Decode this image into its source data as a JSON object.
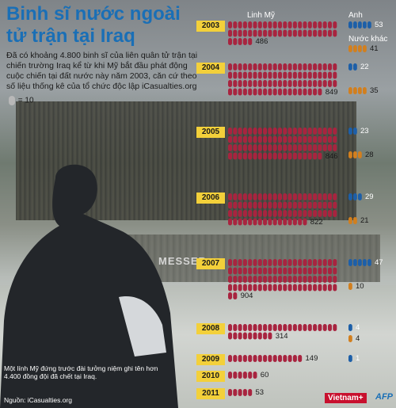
{
  "title": "Binh sĩ nước ngoài tử trận tại Iraq",
  "intro": "Đã có khoảng 4.800 binh sĩ của liên quân tử trận tại chiến trường Iraq kể từ khi Mỹ bắt đầu phát động cuộc chiến tại đất nước này năm 2003, căn cứ theo số liệu thống kê của tổ chức độc lập iCasualties.org",
  "legend_unit": "= 10",
  "caption": "Một lính Mỹ đứng trước đài tưởng niệm ghi tên hơn 4.400 đồng đội đã chết tại Iraq.",
  "source": "Nguồn: iCasualties.org",
  "wall_text": "MESSER",
  "brand": "Vietnam+",
  "afp": "AFP",
  "colors": {
    "us": "#a8243f",
    "uk": "#1d5fa8",
    "other": "#d27f1e",
    "year_tag": "#f3d03a",
    "title": "#1a6fb6"
  },
  "chart_data": {
    "type": "bar",
    "title": "Binh sĩ nước ngoài tử trận tại Iraq",
    "unit_note": "1 biểu tượng = 10",
    "categories": [
      "2003",
      "2004",
      "2005",
      "2006",
      "2007",
      "2008",
      "2009",
      "2010",
      "2011"
    ],
    "series": [
      {
        "name": "Linh Mỹ",
        "values": [
          486,
          849,
          846,
          822,
          904,
          314,
          149,
          60,
          53
        ]
      },
      {
        "name": "Anh",
        "values": [
          53,
          22,
          23,
          29,
          47,
          4,
          1,
          null,
          null
        ]
      },
      {
        "name": "Nước khác",
        "values": [
          41,
          35,
          28,
          21,
          10,
          4,
          null,
          null,
          null
        ]
      }
    ]
  }
}
